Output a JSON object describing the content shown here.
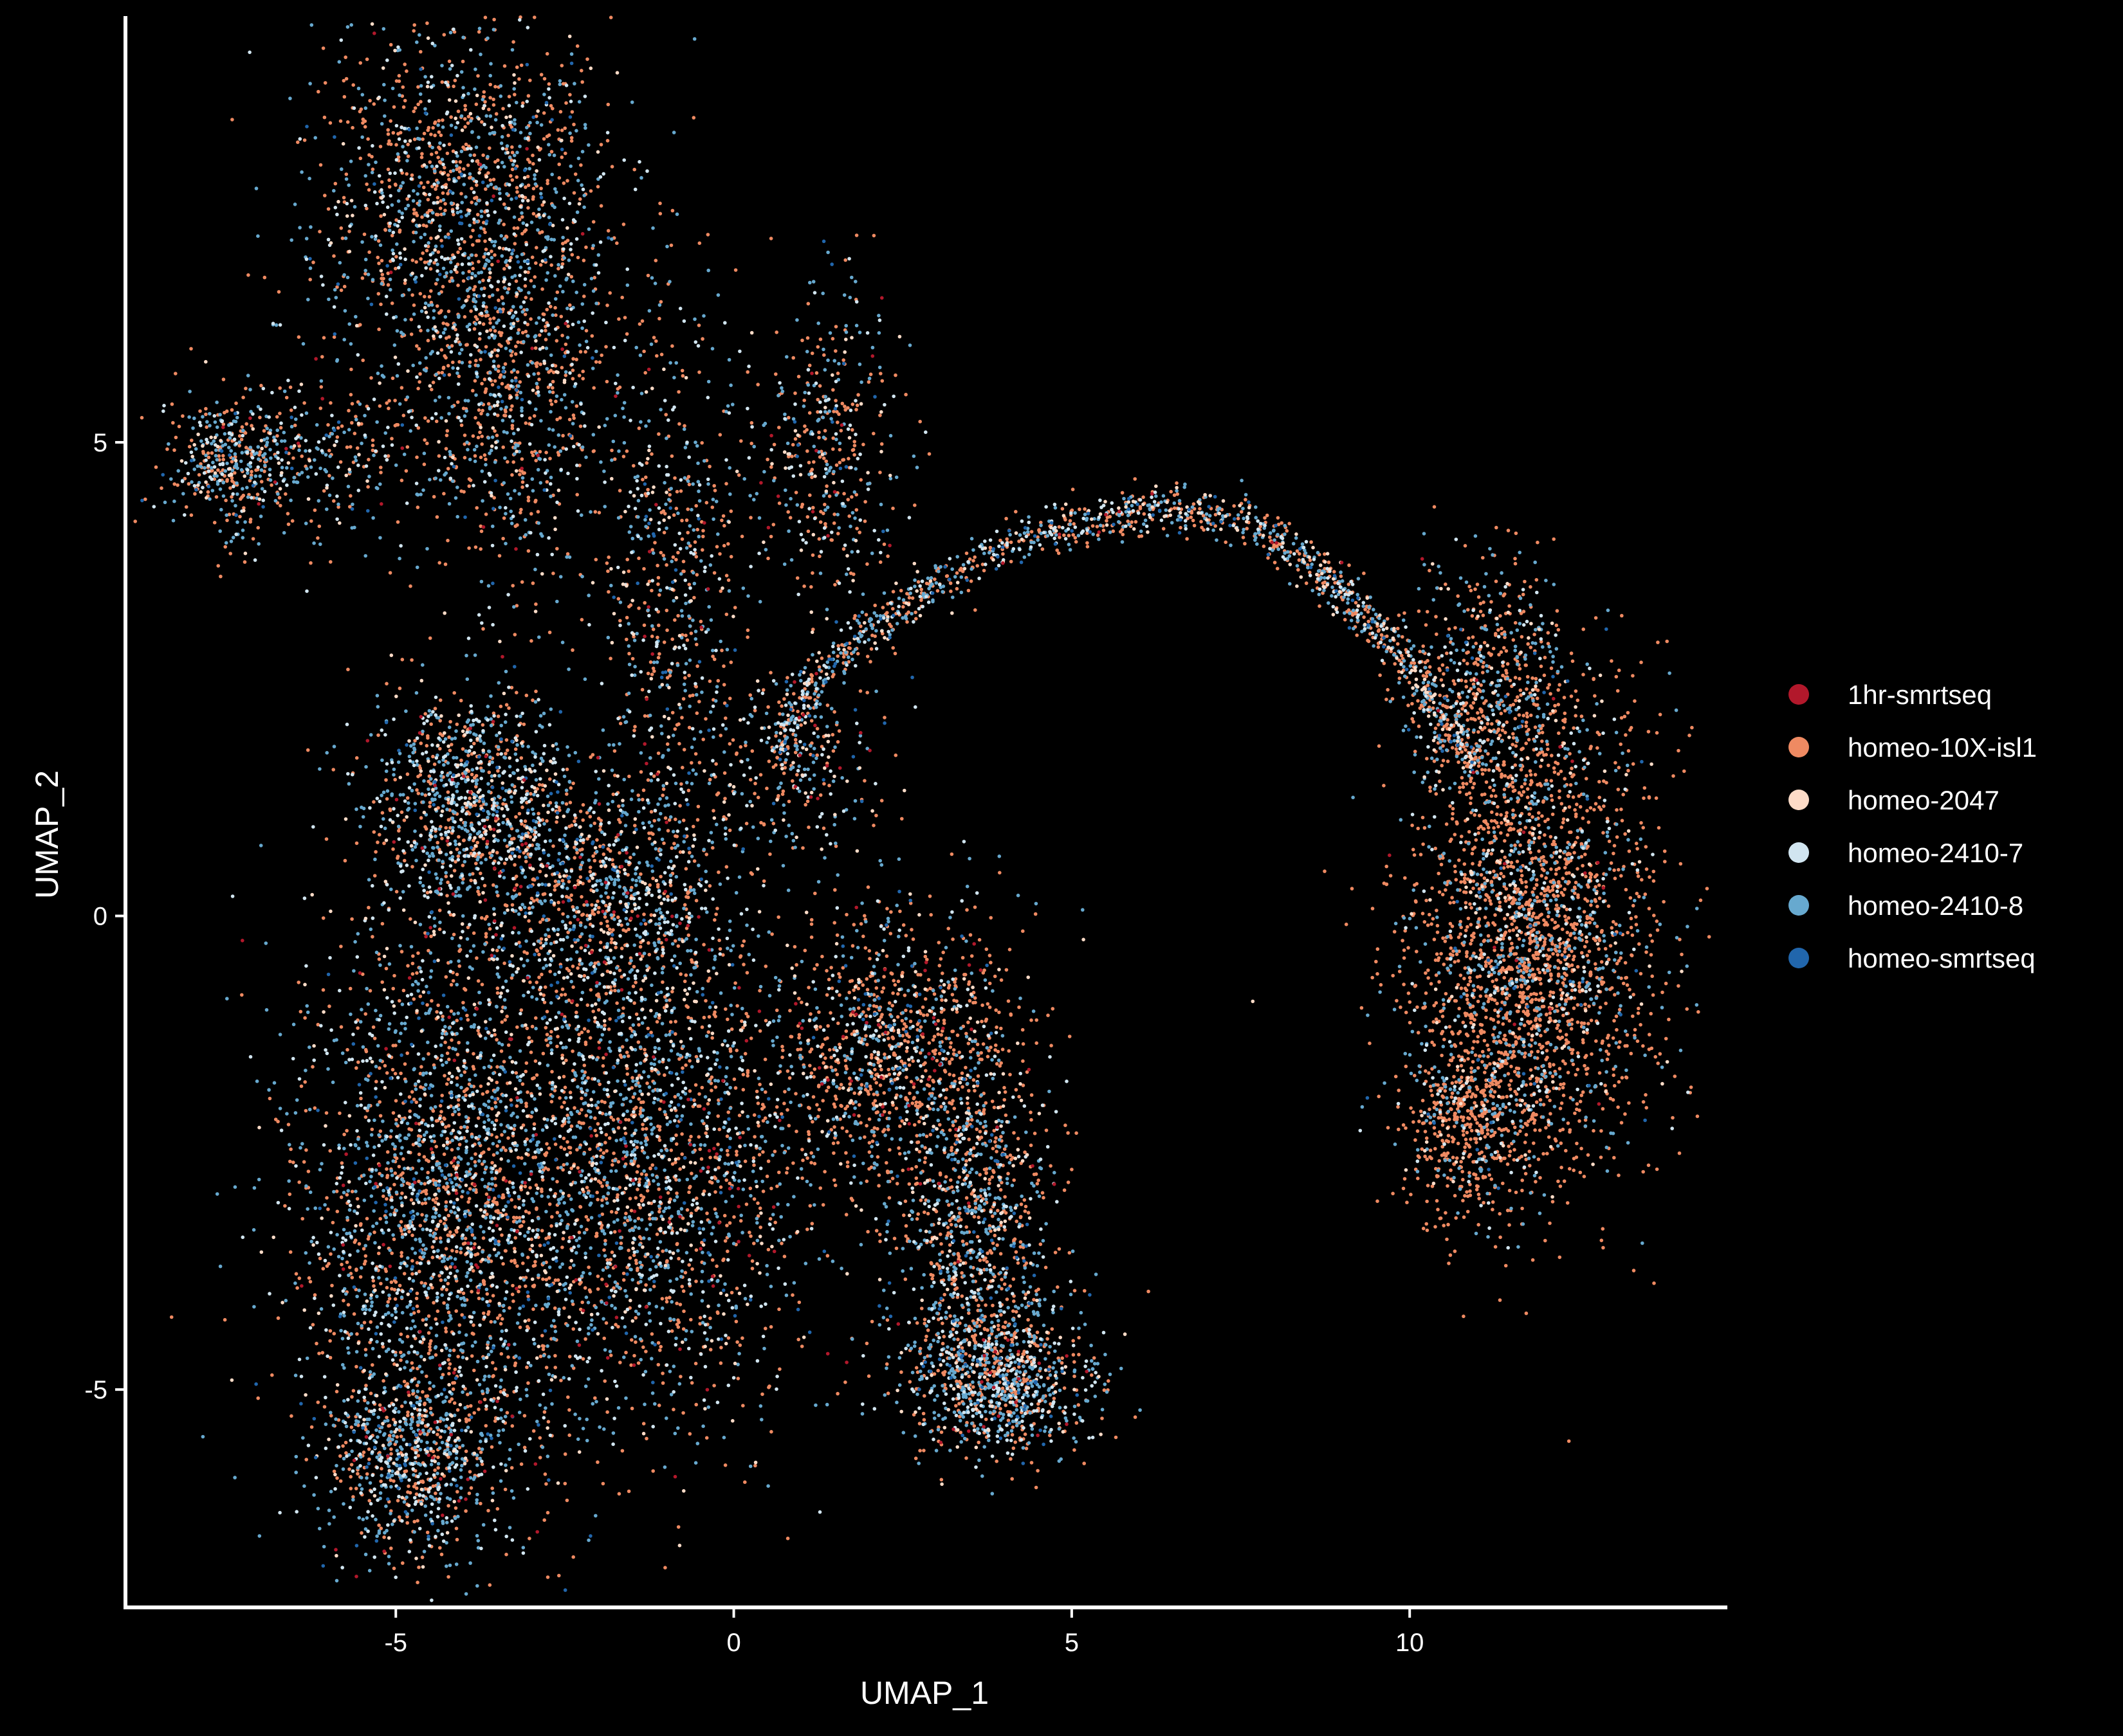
{
  "chart_data": {
    "type": "scatter",
    "title": "",
    "xlabel": "UMAP_1",
    "ylabel": "UMAP_2",
    "xlim": [
      -9,
      14.7
    ],
    "ylim": [
      -7.3,
      9.5
    ],
    "x_ticks": [
      -5,
      0,
      5,
      10
    ],
    "y_ticks": [
      -5,
      0,
      5
    ],
    "x_tick_labels": [
      "-5",
      "0",
      "5",
      "10"
    ],
    "y_tick_labels": [
      "-5",
      "0",
      "5"
    ],
    "grid": false,
    "legend_position": "right",
    "background": "#000000",
    "series": [
      {
        "name": "1hr-smrtseq",
        "color": "#b2182b"
      },
      {
        "name": "homeo-10X-isl1",
        "color": "#ef8a62"
      },
      {
        "name": "homeo-2047",
        "color": "#fddbc7"
      },
      {
        "name": "homeo-2410-7",
        "color": "#d1e5f0"
      },
      {
        "name": "homeo-2410-8",
        "color": "#67a9cf"
      },
      {
        "name": "homeo-smrtseq",
        "color": "#2166ac"
      }
    ],
    "clusters": [
      {
        "region": "upper-left lobe",
        "cx": -4.0,
        "cy": 7.5,
        "sx": 1.1,
        "sy": 1.1,
        "n": 1500,
        "mix": [
          0.01,
          0.45,
          0.06,
          0.14,
          0.3,
          0.04
        ]
      },
      {
        "region": "upper-left lobe (lower)",
        "cx": -3.3,
        "cy": 5.4,
        "sx": 0.8,
        "sy": 1.0,
        "n": 700,
        "mix": [
          0.01,
          0.5,
          0.06,
          0.12,
          0.27,
          0.04
        ]
      },
      {
        "region": "left arm",
        "cx": -6.5,
        "cy": 4.8,
        "sx": 0.9,
        "sy": 0.4,
        "n": 380,
        "mix": [
          0.01,
          0.35,
          0.06,
          0.18,
          0.36,
          0.04
        ]
      },
      {
        "region": "far-left blob",
        "cx": -7.5,
        "cy": 4.8,
        "sx": 0.35,
        "sy": 0.35,
        "n": 260,
        "mix": [
          0.01,
          0.4,
          0.05,
          0.18,
          0.32,
          0.04
        ]
      },
      {
        "region": "central stalk",
        "cx": -0.9,
        "cy": 3.2,
        "sx": 0.55,
        "sy": 1.6,
        "n": 700,
        "mix": [
          0.02,
          0.4,
          0.08,
          0.16,
          0.3,
          0.04
        ]
      },
      {
        "region": "loop",
        "cx": 1.4,
        "cy": 5.0,
        "sx": 0.55,
        "sy": 0.9,
        "n": 420,
        "mix": [
          0.02,
          0.45,
          0.08,
          0.14,
          0.27,
          0.04
        ]
      },
      {
        "region": "stalk right",
        "cx": 1.0,
        "cy": 1.6,
        "sx": 0.6,
        "sy": 0.5,
        "n": 260,
        "mix": [
          0.02,
          0.35,
          0.1,
          0.2,
          0.29,
          0.04
        ]
      },
      {
        "region": "left shoulder",
        "cx": -3.9,
        "cy": 1.2,
        "sx": 0.7,
        "sy": 0.6,
        "n": 950,
        "mix": [
          0.03,
          0.28,
          0.1,
          0.22,
          0.33,
          0.04
        ]
      },
      {
        "region": "diagonal band",
        "cx": -2.0,
        "cy": 0.2,
        "sx": 0.9,
        "sy": 0.7,
        "n": 900,
        "mix": [
          0.03,
          0.34,
          0.08,
          0.18,
          0.33,
          0.04
        ]
      },
      {
        "region": "lower-left body",
        "cx": -4.3,
        "cy": -3.0,
        "sx": 1.1,
        "sy": 1.6,
        "n": 2600,
        "mix": [
          0.02,
          0.38,
          0.07,
          0.17,
          0.32,
          0.04
        ]
      },
      {
        "region": "lower-left tip",
        "cx": -4.8,
        "cy": -5.7,
        "sx": 0.6,
        "sy": 0.5,
        "n": 650,
        "mix": [
          0.02,
          0.3,
          0.07,
          0.22,
          0.35,
          0.04
        ]
      },
      {
        "region": "lower-center body",
        "cx": -1.2,
        "cy": -2.6,
        "sx": 1.2,
        "sy": 1.4,
        "n": 2000,
        "mix": [
          0.03,
          0.38,
          0.08,
          0.16,
          0.31,
          0.04
        ]
      },
      {
        "region": "right upper shoulder",
        "cx": 2.4,
        "cy": -1.5,
        "sx": 1.0,
        "sy": 0.75,
        "n": 1200,
        "mix": [
          0.03,
          0.55,
          0.08,
          0.1,
          0.2,
          0.04
        ]
      },
      {
        "region": "right leg",
        "cx": 3.6,
        "cy": -3.4,
        "sx": 0.6,
        "sy": 0.9,
        "n": 900,
        "mix": [
          0.02,
          0.4,
          0.06,
          0.16,
          0.32,
          0.04
        ]
      },
      {
        "region": "right foot",
        "cx": 3.9,
        "cy": -4.9,
        "sx": 0.7,
        "sy": 0.4,
        "n": 900,
        "mix": [
          0.02,
          0.32,
          0.06,
          0.2,
          0.36,
          0.04
        ]
      },
      {
        "region": "right cluster",
        "cx": 11.8,
        "cy": -0.2,
        "sx": 0.9,
        "sy": 1.3,
        "n": 2600,
        "mix": [
          0.005,
          0.68,
          0.05,
          0.07,
          0.18,
          0.015
        ]
      },
      {
        "region": "right cluster upper",
        "cx": 11.2,
        "cy": 2.5,
        "sx": 0.6,
        "sy": 0.6,
        "n": 500,
        "mix": [
          0.005,
          0.5,
          0.07,
          0.12,
          0.29,
          0.015
        ]
      },
      {
        "region": "right cluster tail",
        "cx": 10.9,
        "cy": -2.2,
        "sx": 0.45,
        "sy": 0.5,
        "n": 500,
        "mix": [
          0.005,
          0.72,
          0.05,
          0.06,
          0.15,
          0.015
        ]
      }
    ],
    "arc_path": [
      [
        0.6,
        1.7
      ],
      [
        1.3,
        2.6
      ],
      [
        2.2,
        3.1
      ],
      [
        3.2,
        3.6
      ],
      [
        4.3,
        4.0
      ],
      [
        5.4,
        4.2
      ],
      [
        6.4,
        4.3
      ],
      [
        7.5,
        4.2
      ],
      [
        8.4,
        3.8
      ],
      [
        9.2,
        3.3
      ],
      [
        9.9,
        2.7
      ],
      [
        10.5,
        2.1
      ],
      [
        11.0,
        1.6
      ]
    ],
    "arc_points": 1400
  }
}
